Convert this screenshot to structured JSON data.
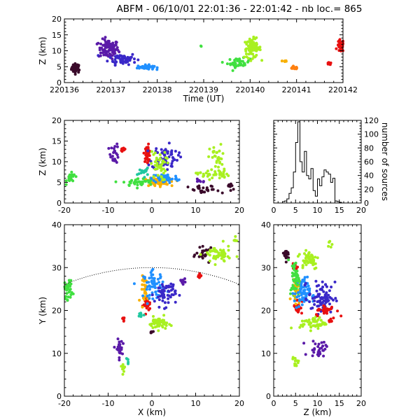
{
  "title": "ABFM - 06/10/01 22:01:36 - 22:01:42 - nb loc.=     865",
  "colors": [
    "#3a0a2a",
    "#5a1aa8",
    "#3a28c8",
    "#2090ff",
    "#20c8a0",
    "#40e040",
    "#a8f020",
    "#f8b000",
    "#ff8010",
    "#e81010"
  ],
  "chart_data": [
    {
      "id": "time-height",
      "type": "scatter",
      "xlabel": "Time (UT)",
      "ylabel": "Z (km)",
      "xlim": [
        220136,
        220142
      ],
      "ylim": [
        0,
        20
      ],
      "xticks": [
        "220136",
        "220137",
        "220138",
        "220139",
        "220140",
        "220141",
        "220142"
      ],
      "yticks": [
        "0",
        "5",
        "10",
        "15",
        "20"
      ],
      "clusters": [
        {
          "x": 220136.25,
          "y": 4.5,
          "sx": 0.08,
          "sy": 1.2,
          "n": 40,
          "c": 0
        },
        {
          "x": 220136.95,
          "y": 10.5,
          "sx": 0.18,
          "sy": 2.5,
          "n": 90,
          "c": 1
        },
        {
          "x": 220137.25,
          "y": 7.5,
          "sx": 0.25,
          "sy": 1.5,
          "n": 60,
          "c": 2
        },
        {
          "x": 220137.75,
          "y": 4.8,
          "sx": 0.15,
          "sy": 0.6,
          "n": 40,
          "c": 3
        },
        {
          "x": 220138.95,
          "y": 11.5,
          "sx": 0.02,
          "sy": 0.2,
          "n": 2,
          "c": 5
        },
        {
          "x": 220139.75,
          "y": 6.2,
          "sx": 0.2,
          "sy": 1.2,
          "n": 40,
          "c": 5
        },
        {
          "x": 220140.05,
          "y": 10.8,
          "sx": 0.15,
          "sy": 2.5,
          "n": 80,
          "c": 6
        },
        {
          "x": 220140.75,
          "y": 6.8,
          "sx": 0.05,
          "sy": 0.3,
          "n": 8,
          "c": 7
        },
        {
          "x": 220140.95,
          "y": 4.6,
          "sx": 0.08,
          "sy": 0.3,
          "n": 20,
          "c": 8
        },
        {
          "x": 220141.7,
          "y": 5.8,
          "sx": 0.04,
          "sy": 0.4,
          "n": 8,
          "c": 9
        },
        {
          "x": 220141.95,
          "y": 11.5,
          "sx": 0.06,
          "sy": 1.6,
          "n": 40,
          "c": 9
        }
      ]
    },
    {
      "id": "xz",
      "type": "scatter",
      "ylabel": "Z (km)",
      "xlim": [
        -20,
        20
      ],
      "ylim": [
        0,
        20
      ],
      "xticks": [
        "-20",
        "-10",
        "0",
        "10",
        "20"
      ],
      "yticks": [
        "0",
        "5",
        "10",
        "15",
        "20"
      ],
      "clusters": [
        {
          "x": -18.5,
          "y": 6,
          "sx": 0.8,
          "sy": 1,
          "n": 25,
          "c": 5
        },
        {
          "x": -6.5,
          "y": 13,
          "sx": 0.5,
          "sy": 0.5,
          "n": 12,
          "c": 9
        },
        {
          "x": -8.5,
          "y": 12,
          "sx": 0.8,
          "sy": 2,
          "n": 25,
          "c": 1
        },
        {
          "x": -1,
          "y": 12,
          "sx": 0.6,
          "sy": 1.6,
          "n": 40,
          "c": 9
        },
        {
          "x": 1,
          "y": 5,
          "sx": 2.5,
          "sy": 0.8,
          "n": 60,
          "c": 7
        },
        {
          "x": 3,
          "y": 6,
          "sx": 2.5,
          "sy": 1,
          "n": 60,
          "c": 3
        },
        {
          "x": -3,
          "y": 5,
          "sx": 3,
          "sy": 0.8,
          "n": 40,
          "c": 5
        },
        {
          "x": 3,
          "y": 11,
          "sx": 2.5,
          "sy": 2.5,
          "n": 70,
          "c": 2
        },
        {
          "x": 1.5,
          "y": 9,
          "sx": 1.5,
          "sy": 3,
          "n": 40,
          "c": 6
        },
        {
          "x": 14,
          "y": 7,
          "sx": 3,
          "sy": 1,
          "n": 40,
          "c": 6
        },
        {
          "x": 15,
          "y": 11,
          "sx": 1.5,
          "sy": 2.5,
          "n": 30,
          "c": 6
        },
        {
          "x": 12,
          "y": 3,
          "sx": 3,
          "sy": 1,
          "n": 25,
          "c": 0
        },
        {
          "x": 18,
          "y": 4,
          "sx": 1,
          "sy": 1,
          "n": 10,
          "c": 0
        },
        {
          "x": 11,
          "y": 5.5,
          "sx": 1,
          "sy": 0.5,
          "n": 8,
          "c": 1
        },
        {
          "x": -2,
          "y": 7.5,
          "sx": 1,
          "sy": 0.8,
          "n": 15,
          "c": 4
        }
      ]
    },
    {
      "id": "histogram",
      "type": "line",
      "ylabel": "number of sources",
      "xlim": [
        0,
        20
      ],
      "ylim": [
        0,
        120
      ],
      "xticks": [
        "0",
        "5",
        "10",
        "15",
        "20"
      ],
      "yticks": [
        "0",
        "20",
        "40",
        "60",
        "80",
        "100",
        "120"
      ],
      "x": [
        0,
        0.5,
        1,
        1.5,
        2,
        2.5,
        3,
        3.5,
        4,
        4.5,
        5,
        5.5,
        6,
        6.5,
        7,
        7.5,
        8,
        8.5,
        9,
        9.5,
        10,
        10.5,
        11,
        11.5,
        12,
        12.5,
        13,
        13.5,
        14,
        14.5,
        15,
        15.5,
        16,
        16.5,
        17,
        17.5,
        18,
        18.5,
        19,
        19.5
      ],
      "values": [
        0,
        0,
        0,
        0,
        2,
        3,
        6,
        14,
        22,
        45,
        88,
        118,
        60,
        45,
        75,
        40,
        35,
        50,
        18,
        10,
        35,
        25,
        38,
        48,
        45,
        42,
        30,
        36,
        3,
        2,
        1,
        0,
        0,
        0,
        0,
        0,
        0,
        0,
        0,
        0
      ]
    },
    {
      "id": "xy",
      "type": "scatter",
      "xlabel": "X (km)",
      "ylabel": "Y (km)",
      "xlim": [
        -20,
        20
      ],
      "ylim": [
        0,
        40
      ],
      "xticks": [
        "-20",
        "-10",
        "0",
        "10",
        "20"
      ],
      "yticks": [
        "0",
        "10",
        "20",
        "30",
        "40"
      ],
      "range_circle": {
        "cx": 0,
        "cy": -23,
        "r": 53
      },
      "clusters": [
        {
          "x": -19,
          "y": 25,
          "sx": 0.8,
          "sy": 2,
          "n": 30,
          "c": 5
        },
        {
          "x": -6.5,
          "y": 18,
          "sx": 0.3,
          "sy": 0.5,
          "n": 6,
          "c": 9
        },
        {
          "x": -7.5,
          "y": 11,
          "sx": 0.6,
          "sy": 1.8,
          "n": 30,
          "c": 1
        },
        {
          "x": -6.5,
          "y": 7,
          "sx": 0.5,
          "sy": 1,
          "n": 12,
          "c": 6
        },
        {
          "x": -5.5,
          "y": 8,
          "sx": 0.3,
          "sy": 0.6,
          "n": 5,
          "c": 4
        },
        {
          "x": -1.2,
          "y": 21.5,
          "sx": 0.7,
          "sy": 1.5,
          "n": 30,
          "c": 9
        },
        {
          "x": -1.5,
          "y": 25,
          "sx": 0.8,
          "sy": 2.5,
          "n": 30,
          "c": 7
        },
        {
          "x": 0.5,
          "y": 26,
          "sx": 2,
          "sy": 2.5,
          "n": 60,
          "c": 3
        },
        {
          "x": 3,
          "y": 24,
          "sx": 2,
          "sy": 2.5,
          "n": 60,
          "c": 2
        },
        {
          "x": 1.5,
          "y": 17,
          "sx": 1.8,
          "sy": 1.2,
          "n": 50,
          "c": 6
        },
        {
          "x": 0,
          "y": 15,
          "sx": 0.4,
          "sy": 0.4,
          "n": 6,
          "c": 0
        },
        {
          "x": 7,
          "y": 27,
          "sx": 0.6,
          "sy": 0.6,
          "n": 10,
          "c": 1
        },
        {
          "x": 12,
          "y": 33,
          "sx": 1.5,
          "sy": 1.2,
          "n": 25,
          "c": 0
        },
        {
          "x": 15,
          "y": 33,
          "sx": 2.5,
          "sy": 1.8,
          "n": 50,
          "c": 6
        },
        {
          "x": 19,
          "y": 36,
          "sx": 0.5,
          "sy": 0.8,
          "n": 6,
          "c": 6
        },
        {
          "x": 11,
          "y": 28,
          "sx": 0.5,
          "sy": 0.8,
          "n": 8,
          "c": 9
        },
        {
          "x": -2.5,
          "y": 19,
          "sx": 0.5,
          "sy": 0.6,
          "n": 10,
          "c": 4
        }
      ]
    },
    {
      "id": "zy",
      "type": "scatter",
      "xlabel": "Z (km)",
      "xlim": [
        0,
        20
      ],
      "ylim": [
        0,
        40
      ],
      "xticks": [
        "0",
        "5",
        "10",
        "15",
        "20"
      ],
      "yticks": [
        "0",
        "10",
        "20",
        "30",
        "40"
      ],
      "clusters": [
        {
          "x": 5,
          "y": 25,
          "sx": 0.8,
          "sy": 2,
          "n": 30,
          "c": 5
        },
        {
          "x": 13,
          "y": 18,
          "sx": 0.5,
          "sy": 0.5,
          "n": 6,
          "c": 9
        },
        {
          "x": 10.5,
          "y": 11,
          "sx": 2,
          "sy": 1.8,
          "n": 30,
          "c": 1
        },
        {
          "x": 5,
          "y": 8,
          "sx": 0.6,
          "sy": 1,
          "n": 12,
          "c": 6
        },
        {
          "x": 5.5,
          "y": 21,
          "sx": 0.8,
          "sy": 1.5,
          "n": 30,
          "c": 9
        },
        {
          "x": 5,
          "y": 25,
          "sx": 0.8,
          "sy": 2.5,
          "n": 30,
          "c": 7
        },
        {
          "x": 6.5,
          "y": 24,
          "sx": 1.5,
          "sy": 3,
          "n": 60,
          "c": 3
        },
        {
          "x": 11,
          "y": 23,
          "sx": 2.5,
          "sy": 3,
          "n": 80,
          "c": 2
        },
        {
          "x": 9,
          "y": 17,
          "sx": 2.5,
          "sy": 1.2,
          "n": 50,
          "c": 6
        },
        {
          "x": 3,
          "y": 33,
          "sx": 0.5,
          "sy": 1.2,
          "n": 20,
          "c": 0
        },
        {
          "x": 8,
          "y": 32,
          "sx": 2,
          "sy": 2,
          "n": 50,
          "c": 6
        },
        {
          "x": 13,
          "y": 36,
          "sx": 0.5,
          "sy": 0.8,
          "n": 6,
          "c": 6
        },
        {
          "x": 5,
          "y": 30,
          "sx": 0.5,
          "sy": 0.8,
          "n": 8,
          "c": 9
        },
        {
          "x": 12,
          "y": 20,
          "sx": 2,
          "sy": 1,
          "n": 30,
          "c": 9
        },
        {
          "x": 5,
          "y": 28,
          "sx": 0.8,
          "sy": 3,
          "n": 40,
          "c": 5
        }
      ]
    }
  ]
}
